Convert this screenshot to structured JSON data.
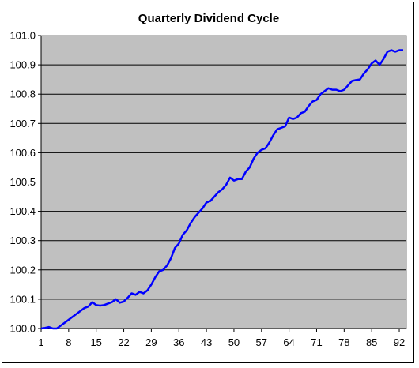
{
  "chart_data": {
    "type": "line",
    "title": "Quarterly Dividend Cycle",
    "xlabel": "",
    "ylabel": "",
    "xlim": [
      1,
      93
    ],
    "ylim": [
      100.0,
      101.0
    ],
    "y_tick_labels": [
      "100.0",
      "100.1",
      "100.2",
      "100.3",
      "100.4",
      "100.5",
      "100.6",
      "100.7",
      "100.8",
      "100.9",
      "101.0"
    ],
    "x_tick_labels": [
      "1",
      "8",
      "15",
      "22",
      "29",
      "36",
      "43",
      "50",
      "57",
      "64",
      "71",
      "78",
      "85",
      "92"
    ],
    "x_tick_values": [
      1,
      8,
      15,
      22,
      29,
      36,
      43,
      50,
      57,
      64,
      71,
      78,
      85,
      92
    ],
    "grid": true,
    "plot_background": "#C0C0C0",
    "series": [
      {
        "color": "#0000FF",
        "x": [
          1,
          2,
          3,
          4,
          5,
          6,
          7,
          8,
          9,
          10,
          11,
          12,
          13,
          14,
          15,
          16,
          17,
          18,
          19,
          20,
          21,
          22,
          23,
          24,
          25,
          26,
          27,
          28,
          29,
          30,
          31,
          32,
          33,
          34,
          35,
          36,
          37,
          38,
          39,
          40,
          41,
          42,
          43,
          44,
          45,
          46,
          47,
          48,
          49,
          50,
          51,
          52,
          53,
          54,
          55,
          56,
          57,
          58,
          59,
          60,
          61,
          62,
          63,
          64,
          65,
          66,
          67,
          68,
          69,
          70,
          71,
          72,
          73,
          74,
          75,
          76,
          77,
          78,
          79,
          80,
          81,
          82,
          83,
          84,
          85,
          86,
          87,
          88,
          89,
          90,
          91,
          92,
          93
        ],
        "values": [
          100.0,
          100.002,
          100.005,
          100.0,
          100.0,
          100.01,
          100.02,
          100.03,
          100.04,
          100.05,
          100.06,
          100.07,
          100.075,
          100.09,
          100.08,
          100.078,
          100.08,
          100.085,
          100.09,
          100.1,
          100.088,
          100.092,
          100.105,
          100.12,
          100.115,
          100.125,
          100.12,
          100.13,
          100.15,
          100.175,
          100.195,
          100.2,
          100.215,
          100.24,
          100.275,
          100.29,
          100.32,
          100.335,
          100.36,
          100.38,
          100.395,
          100.41,
          100.43,
          100.435,
          100.45,
          100.465,
          100.475,
          100.49,
          100.515,
          100.505,
          100.51,
          100.51,
          100.535,
          100.55,
          100.58,
          100.6,
          100.61,
          100.615,
          100.635,
          100.66,
          100.68,
          100.685,
          100.69,
          100.72,
          100.715,
          100.72,
          100.735,
          100.74,
          100.76,
          100.775,
          100.78,
          100.8,
          100.81,
          100.82,
          100.815,
          100.815,
          100.81,
          100.815,
          100.83,
          100.845,
          100.848,
          100.85,
          100.87,
          100.885,
          100.905,
          100.915,
          100.9,
          100.92,
          100.945,
          100.95,
          100.945,
          100.95,
          100.95
        ]
      }
    ]
  }
}
